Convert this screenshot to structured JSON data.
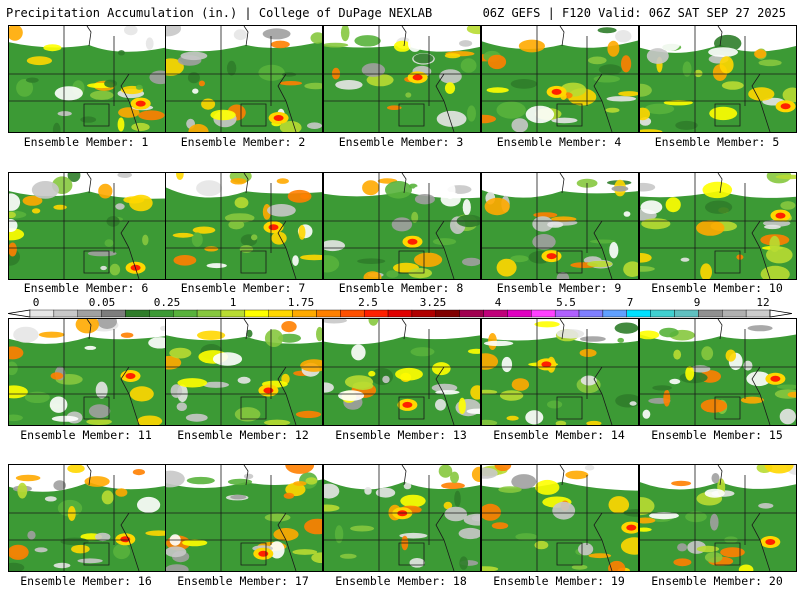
{
  "header": {
    "title_left": "Precipitation Accumulation (in.) | College of DuPage NEXLAB",
    "title_right": "06Z GEFS | F120 Valid: 06Z SAT SEP 27 2025"
  },
  "colorbar": {
    "labels": [
      "0",
      "0.05",
      "0.25",
      "1",
      "1.75",
      "2.5",
      "3.25",
      "4",
      "5.5",
      "7",
      "9",
      "12"
    ],
    "colors": [
      "#e6e6e6",
      "#c8c8c8",
      "#a0a0a0",
      "#7d7d7d",
      "#2f7d2a",
      "#3c9a35",
      "#58b23c",
      "#86c83e",
      "#b8dc32",
      "#ffff00",
      "#ffd700",
      "#ffaa00",
      "#ff8000",
      "#ff5000",
      "#ff2000",
      "#e00000",
      "#b00000",
      "#800000",
      "#a00050",
      "#c0007a",
      "#e000c0",
      "#ff40ff",
      "#b060ff",
      "#8080ff",
      "#60a0ff",
      "#00e0ff",
      "#40d0d0",
      "#60c0c0",
      "#909090",
      "#b0b0b0",
      "#cccccc"
    ]
  },
  "panels": [
    {
      "label": "Ensemble Member: 1"
    },
    {
      "label": "Ensemble Member: 2"
    },
    {
      "label": "Ensemble Member: 3"
    },
    {
      "label": "Ensemble Member: 4"
    },
    {
      "label": "Ensemble Member: 5"
    },
    {
      "label": "Ensemble Member: 6"
    },
    {
      "label": "Ensemble Member: 7"
    },
    {
      "label": "Ensemble Member: 8"
    },
    {
      "label": "Ensemble Member: 9"
    },
    {
      "label": "Ensemble Member: 10"
    },
    {
      "label": "Ensemble Member: 11"
    },
    {
      "label": "Ensemble Member: 12"
    },
    {
      "label": "Ensemble Member: 13"
    },
    {
      "label": "Ensemble Member: 14"
    },
    {
      "label": "Ensemble Member: 15"
    },
    {
      "label": "Ensemble Member: 16"
    },
    {
      "label": "Ensemble Member: 17"
    },
    {
      "label": "Ensemble Member: 18"
    },
    {
      "label": "Ensemble Member: 19"
    },
    {
      "label": "Ensemble Member: 20"
    }
  ]
}
